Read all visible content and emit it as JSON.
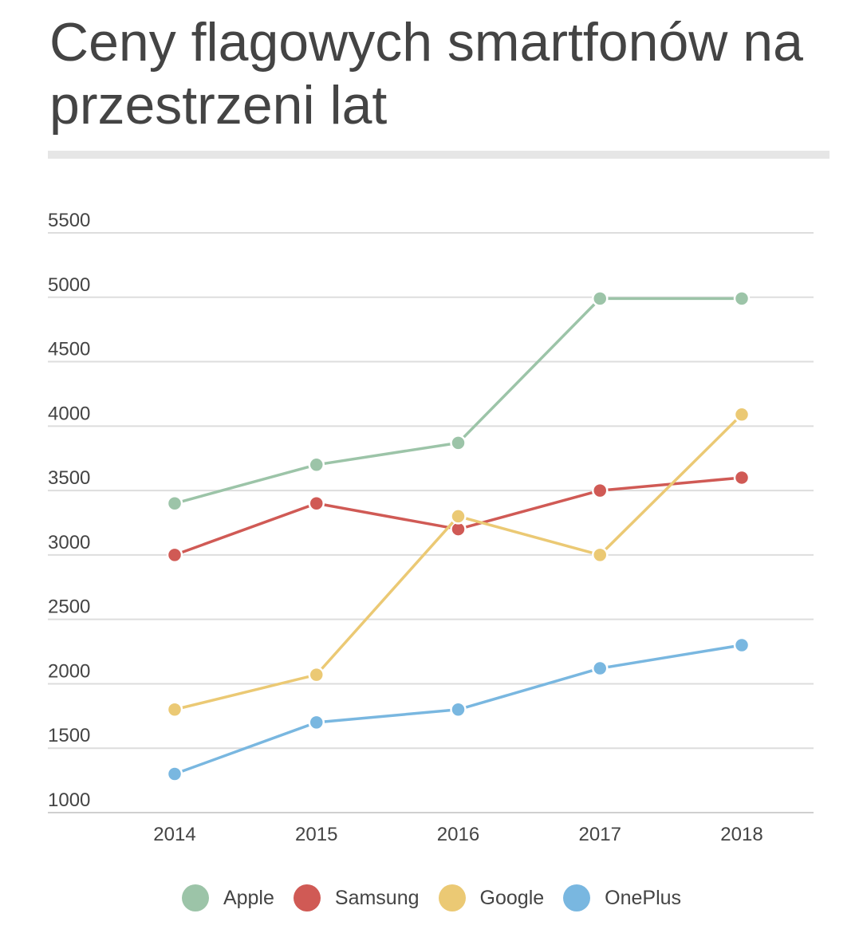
{
  "title": "Ceny flagowych smartfonów na przestrzeni lat",
  "chart_data": {
    "type": "line",
    "title": "Ceny flagowych smartfonów na przestrzeni lat",
    "xlabel": "",
    "ylabel": "",
    "categories": [
      "2014",
      "2015",
      "2016",
      "2017",
      "2018"
    ],
    "yticks": [
      "1000",
      "1500",
      "2000",
      "2500",
      "3000",
      "3500",
      "4000",
      "4500",
      "5000",
      "5500"
    ],
    "ylim": [
      1000,
      5500
    ],
    "grid": true,
    "legend_position": "bottom",
    "series": [
      {
        "name": "Apple",
        "color": "#9cc4a8",
        "values": [
          3400,
          3700,
          3870,
          4990,
          4990
        ]
      },
      {
        "name": "Samsung",
        "color": "#d05a55",
        "values": [
          3000,
          3400,
          3200,
          3500,
          3600
        ]
      },
      {
        "name": "Google",
        "color": "#ebc974",
        "values": [
          1800,
          2070,
          3300,
          3000,
          4090
        ]
      },
      {
        "name": "OnePlus",
        "color": "#79b7e0",
        "values": [
          1300,
          1700,
          1800,
          2120,
          2300
        ]
      }
    ]
  }
}
